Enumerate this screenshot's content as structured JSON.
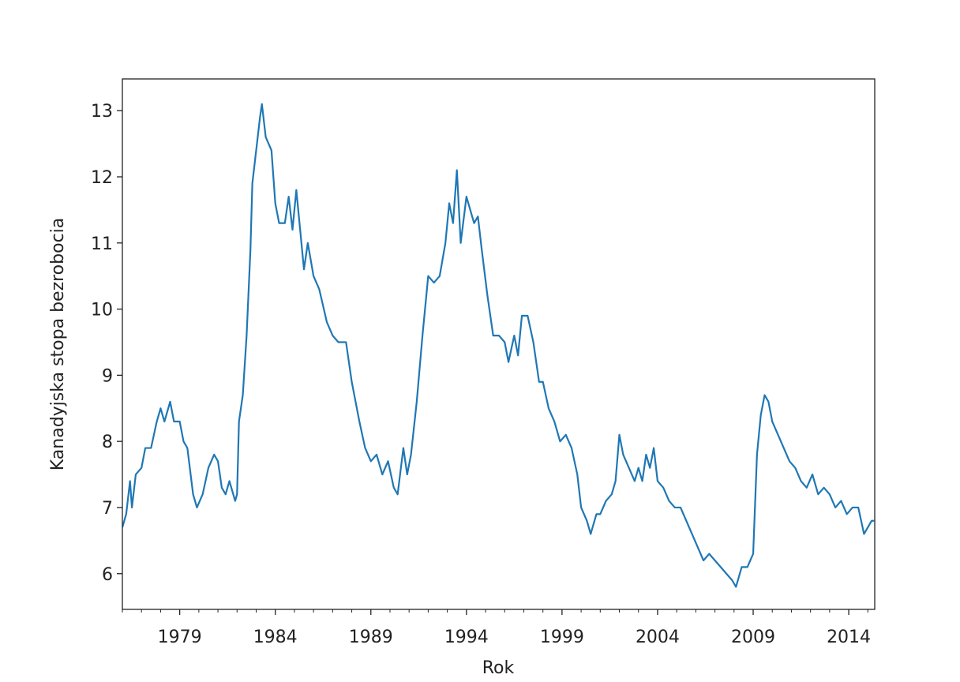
{
  "chart_data": {
    "type": "line",
    "xlabel": "Rok",
    "ylabel": "Kanadyjska stopa bezrobocia",
    "x": [
      1976.0,
      1976.2,
      1976.4,
      1976.5,
      1976.7,
      1977.0,
      1977.2,
      1977.5,
      1977.8,
      1978.0,
      1978.2,
      1978.5,
      1978.7,
      1979.0,
      1979.2,
      1979.4,
      1979.7,
      1979.9,
      1980.2,
      1980.5,
      1980.8,
      1981.0,
      1981.2,
      1981.4,
      1981.6,
      1981.9,
      1982.0,
      1982.1,
      1982.3,
      1982.5,
      1982.7,
      1982.8,
      1983.0,
      1983.2,
      1983.3,
      1983.5,
      1983.8,
      1984.0,
      1984.2,
      1984.5,
      1984.7,
      1984.9,
      1985.1,
      1985.3,
      1985.5,
      1985.7,
      1986.0,
      1986.3,
      1986.7,
      1987.0,
      1987.3,
      1987.7,
      1988.0,
      1988.4,
      1988.7,
      1989.0,
      1989.3,
      1989.6,
      1989.9,
      1990.2,
      1990.4,
      1990.7,
      1990.9,
      1991.1,
      1991.4,
      1991.7,
      1992.0,
      1992.3,
      1992.6,
      1992.9,
      1993.1,
      1993.3,
      1993.5,
      1993.7,
      1994.0,
      1994.2,
      1994.4,
      1994.6,
      1994.8,
      1995.1,
      1995.4,
      1995.7,
      1996.0,
      1996.2,
      1996.5,
      1996.7,
      1996.9,
      1997.2,
      1997.5,
      1997.8,
      1998.0,
      1998.3,
      1998.6,
      1998.9,
      1999.2,
      1999.5,
      1999.8,
      2000.0,
      2000.3,
      2000.5,
      2000.8,
      2001.0,
      2001.3,
      2001.6,
      2001.8,
      2002.0,
      2002.2,
      2002.5,
      2002.8,
      2003.0,
      2003.2,
      2003.4,
      2003.6,
      2003.8,
      2004.0,
      2004.3,
      2004.6,
      2004.9,
      2005.2,
      2005.5,
      2005.8,
      2006.1,
      2006.4,
      2006.7,
      2007.0,
      2007.3,
      2007.6,
      2007.9,
      2008.1,
      2008.4,
      2008.7,
      2009.0,
      2009.2,
      2009.4,
      2009.6,
      2009.8,
      2010.0,
      2010.3,
      2010.6,
      2010.9,
      2011.2,
      2011.5,
      2011.8,
      2012.1,
      2012.4,
      2012.7,
      2013.0,
      2013.3,
      2013.6,
      2013.9,
      2014.2,
      2014.5,
      2014.8,
      2015.0,
      2015.2,
      2015.33
    ],
    "series": [
      {
        "color": "#1f77b4",
        "values": [
          6.7,
          6.9,
          7.4,
          7.0,
          7.5,
          7.6,
          7.9,
          7.9,
          8.3,
          8.5,
          8.3,
          8.6,
          8.3,
          8.3,
          8.0,
          7.9,
          7.2,
          7.0,
          7.2,
          7.6,
          7.8,
          7.7,
          7.3,
          7.2,
          7.4,
          7.1,
          7.2,
          8.3,
          8.7,
          9.6,
          10.9,
          11.9,
          12.4,
          12.9,
          13.1,
          12.6,
          12.4,
          11.6,
          11.3,
          11.3,
          11.7,
          11.2,
          11.8,
          11.2,
          10.6,
          11.0,
          10.5,
          10.3,
          9.8,
          9.6,
          9.5,
          9.5,
          8.9,
          8.3,
          7.9,
          7.7,
          7.8,
          7.5,
          7.7,
          7.3,
          7.2,
          7.9,
          7.5,
          7.8,
          8.6,
          9.6,
          10.5,
          10.4,
          10.5,
          11.0,
          11.6,
          11.3,
          12.1,
          11.0,
          11.7,
          11.5,
          11.3,
          11.4,
          10.9,
          10.2,
          9.6,
          9.6,
          9.5,
          9.2,
          9.6,
          9.3,
          9.9,
          9.9,
          9.5,
          8.9,
          8.9,
          8.5,
          8.3,
          8.0,
          8.1,
          7.9,
          7.5,
          7.0,
          6.8,
          6.6,
          6.9,
          6.9,
          7.1,
          7.2,
          7.4,
          8.1,
          7.8,
          7.6,
          7.4,
          7.6,
          7.4,
          7.8,
          7.6,
          7.9,
          7.4,
          7.3,
          7.1,
          7.0,
          7.0,
          6.8,
          6.6,
          6.4,
          6.2,
          6.3,
          6.2,
          6.1,
          6.0,
          5.9,
          5.8,
          6.1,
          6.1,
          6.3,
          7.8,
          8.4,
          8.7,
          8.6,
          8.3,
          8.1,
          7.9,
          7.7,
          7.6,
          7.4,
          7.3,
          7.5,
          7.2,
          7.3,
          7.2,
          7.0,
          7.1,
          6.9,
          7.0,
          7.0,
          6.6,
          6.7,
          6.8,
          6.8
        ]
      }
    ],
    "xlim": [
      1976.0,
      2015.36
    ],
    "ylim": [
      5.46,
      13.48
    ],
    "xticks": [
      1979,
      1984,
      1989,
      1994,
      1999,
      2004,
      2009,
      2014
    ],
    "xminorticks": [
      1976,
      1977,
      1978,
      1980,
      1981,
      1982,
      1983,
      1985,
      1986,
      1987,
      1988,
      1990,
      1991,
      1992,
      1993,
      1995,
      1996,
      1997,
      1998,
      2000,
      2001,
      2002,
      2003,
      2005,
      2006,
      2007,
      2008,
      2010,
      2011,
      2012,
      2013,
      2015
    ],
    "yticks": [
      6,
      7,
      8,
      9,
      10,
      11,
      12,
      13
    ],
    "grid": false
  }
}
